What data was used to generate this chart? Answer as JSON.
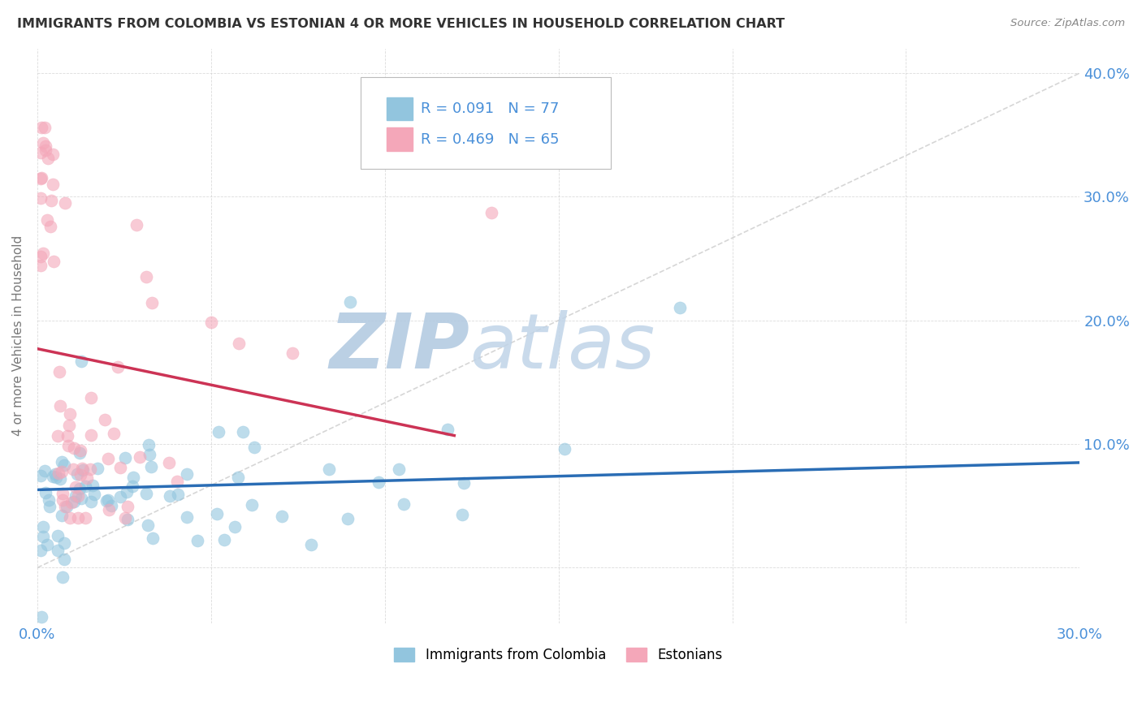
{
  "title": "IMMIGRANTS FROM COLOMBIA VS ESTONIAN 4 OR MORE VEHICLES IN HOUSEHOLD CORRELATION CHART",
  "source_text": "Source: ZipAtlas.com",
  "ylabel": "4 or more Vehicles in Household",
  "xmin": 0.0,
  "xmax": 0.3,
  "ymin": -0.045,
  "ymax": 0.42,
  "r_colombia": 0.091,
  "n_colombia": 77,
  "r_estonian": 0.469,
  "n_estonian": 65,
  "color_colombia": "#92c5de",
  "color_estonian": "#f4a7b9",
  "color_trendline_colombia": "#2a6db5",
  "color_trendline_estonian": "#cc3355",
  "watermark_zip": "ZIP",
  "watermark_atlas": "atlas",
  "watermark_color_zip": "#b8cfe0",
  "watermark_color_atlas": "#c8d8e8",
  "background_color": "#ffffff",
  "grid_color": "#cccccc",
  "title_color": "#333333",
  "axis_color": "#4a90d9",
  "axis_label_color": "#777777"
}
